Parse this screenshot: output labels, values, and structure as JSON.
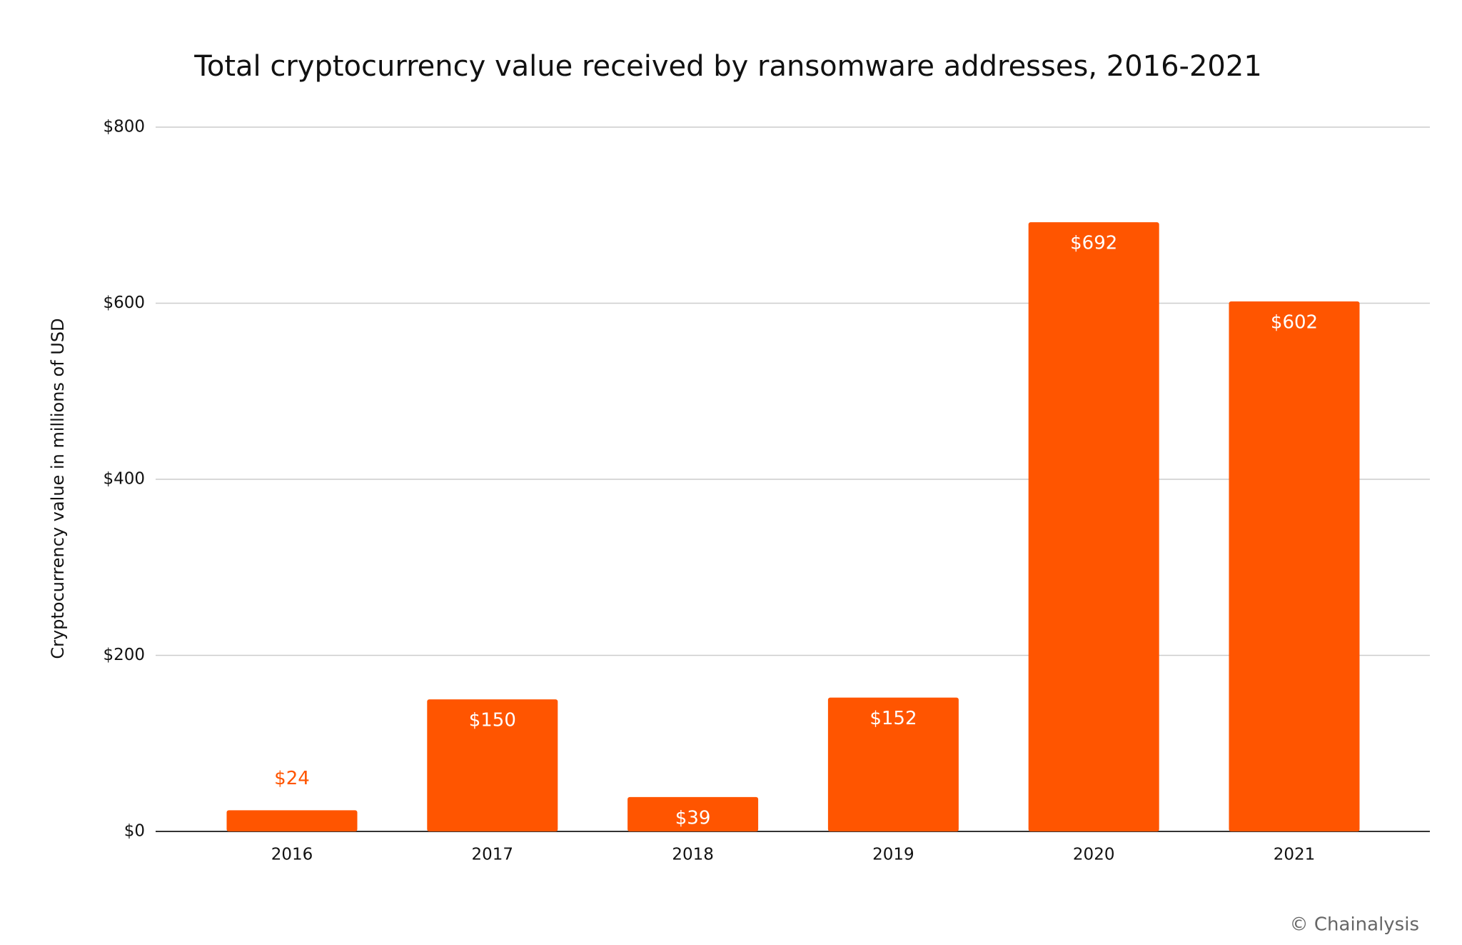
{
  "chart_data": {
    "type": "bar",
    "title": "Total cryptocurrency value received by ransomware addresses, 2016-2021",
    "y_label": "Cryptocurrency value in millions of  USD",
    "categories": [
      "2016",
      "2017",
      "2018",
      "2019",
      "2020",
      "2021"
    ],
    "values": [
      24,
      150,
      39,
      152,
      692,
      602
    ],
    "value_labels": [
      "$24",
      "$150",
      "$39",
      "$152",
      "$692",
      "$602"
    ],
    "color": "#ff5500",
    "ylim": [
      0,
      800
    ],
    "yticks": [
      {
        "value": 0,
        "label": "$0"
      },
      {
        "value": 200,
        "label": "$200"
      },
      {
        "value": 400,
        "label": "$400"
      },
      {
        "value": 600,
        "label": "$600"
      },
      {
        "value": 800,
        "label": "$800"
      }
    ],
    "grid": true,
    "watermark": "© Chainalysis"
  }
}
